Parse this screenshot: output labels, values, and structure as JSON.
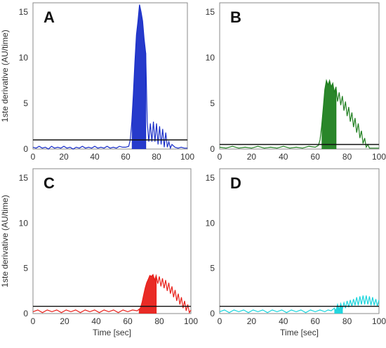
{
  "chart_data": [
    {
      "type": "line",
      "panel_label": "A",
      "ylabel": "1ste derivative (AU/time)",
      "xlabel": "",
      "xlim": [
        0,
        100
      ],
      "ylim": [
        0,
        16
      ],
      "xticks": [
        "0",
        "20",
        "40",
        "60",
        "80",
        "100"
      ],
      "yticks": [
        "0",
        "5",
        "10",
        "15"
      ],
      "color": "#1a2fc8",
      "threshold": 1.0,
      "shaded_range": [
        64,
        73
      ],
      "marker_x": 73,
      "series": [
        {
          "x": [
            0,
            2,
            4,
            6,
            8,
            10,
            12,
            14,
            16,
            18,
            20,
            22,
            24,
            26,
            28,
            30,
            32,
            34,
            36,
            38,
            40,
            42,
            44,
            46,
            48,
            50,
            52,
            54,
            56,
            58,
            60,
            62,
            63,
            64,
            65,
            66,
            67,
            68,
            69,
            70,
            71,
            72,
            73,
            74,
            75,
            76,
            77,
            78,
            79,
            80,
            81,
            82,
            83,
            84,
            85,
            86,
            87,
            88,
            89,
            90,
            92,
            94,
            96,
            98,
            100
          ],
          "y": [
            0.2,
            0.1,
            0.3,
            0.1,
            0.2,
            0.0,
            0.3,
            0.1,
            0.2,
            0.1,
            0.3,
            0.1,
            0.2,
            0.0,
            0.2,
            0.1,
            0.3,
            0.1,
            0.2,
            0.1,
            0.3,
            0.1,
            0.2,
            0.1,
            0.3,
            0.1,
            0.2,
            0.1,
            0.3,
            0.2,
            0.2,
            0.3,
            1.0,
            3.0,
            6.0,
            9.5,
            12.5,
            14.0,
            15.8,
            15.0,
            14.0,
            12.0,
            10.5,
            3.0,
            0.8,
            2.8,
            0.8,
            3.0,
            0.8,
            2.8,
            0.5,
            2.5,
            0.5,
            2.2,
            0.2,
            1.8,
            0.2,
            0.8,
            0.1,
            0.5,
            0.2,
            0.1,
            0.2,
            0.1,
            0.1
          ]
        }
      ]
    },
    {
      "type": "line",
      "panel_label": "B",
      "ylabel": "",
      "xlabel": "",
      "xlim": [
        0,
        100
      ],
      "ylim": [
        0,
        16
      ],
      "xticks": [
        "0",
        "20",
        "40",
        "60",
        "80",
        "100"
      ],
      "yticks": [
        "0",
        "5",
        "10",
        "15"
      ],
      "color": "#1f7f1f",
      "threshold": 0.5,
      "shaded_range": [
        64,
        73
      ],
      "marker_x": 73,
      "series": [
        {
          "x": [
            0,
            4,
            8,
            12,
            16,
            20,
            24,
            28,
            32,
            36,
            40,
            44,
            48,
            52,
            56,
            60,
            62,
            63,
            64,
            65,
            66,
            67,
            68,
            69,
            70,
            71,
            72,
            73,
            74,
            75,
            76,
            77,
            78,
            79,
            80,
            81,
            82,
            83,
            84,
            85,
            86,
            87,
            88,
            89,
            90,
            91,
            92,
            93,
            94,
            96,
            98,
            100
          ],
          "y": [
            0.2,
            0.1,
            0.3,
            0.1,
            0.2,
            0.1,
            0.3,
            0.1,
            0.2,
            0.1,
            0.3,
            0.1,
            0.2,
            0.1,
            0.3,
            0.2,
            0.4,
            1.0,
            2.5,
            4.5,
            6.5,
            7.5,
            7.0,
            7.5,
            6.8,
            7.2,
            6.2,
            6.8,
            5.2,
            6.2,
            4.8,
            5.8,
            4.2,
            5.2,
            3.6,
            4.6,
            3.0,
            4.0,
            2.4,
            3.4,
            1.8,
            2.8,
            1.2,
            2.0,
            0.6,
            1.2,
            0.2,
            0.5,
            0.1,
            0.1,
            0.1,
            0.1
          ]
        }
      ]
    },
    {
      "type": "line",
      "panel_label": "C",
      "ylabel": "1ste derivative (AU/time)",
      "xlabel": "Time [sec]",
      "xlim": [
        0,
        100
      ],
      "ylim": [
        0,
        16
      ],
      "xticks": [
        "0",
        "20",
        "40",
        "60",
        "80",
        "100"
      ],
      "yticks": [
        "0",
        "5",
        "10",
        "15"
      ],
      "color": "#e8201a",
      "threshold": 0.8,
      "shaded_range": [
        67,
        78
      ],
      "marker_x": 78,
      "series": [
        {
          "x": [
            0,
            3,
            6,
            9,
            12,
            15,
            18,
            21,
            24,
            27,
            30,
            33,
            36,
            39,
            42,
            45,
            48,
            51,
            54,
            57,
            60,
            63,
            66,
            68,
            69,
            70,
            71,
            72,
            73,
            74,
            75,
            76,
            77,
            78,
            79,
            80,
            81,
            82,
            83,
            84,
            85,
            86,
            87,
            88,
            89,
            90,
            91,
            92,
            93,
            94,
            95,
            96,
            97,
            98,
            99,
            100
          ],
          "y": [
            0.2,
            0.4,
            0.1,
            0.4,
            0.2,
            0.4,
            0.1,
            0.4,
            0.2,
            0.4,
            0.1,
            0.4,
            0.2,
            0.4,
            0.1,
            0.4,
            0.2,
            0.4,
            0.1,
            0.4,
            0.2,
            0.4,
            0.3,
            0.6,
            1.2,
            2.0,
            2.8,
            3.4,
            3.8,
            4.2,
            4.1,
            4.3,
            3.7,
            4.2,
            3.3,
            4.1,
            3.0,
            3.9,
            2.8,
            3.7,
            2.5,
            3.4,
            2.2,
            3.0,
            1.8,
            2.6,
            1.4,
            2.2,
            1.0,
            1.8,
            0.6,
            1.4,
            0.3,
            1.0,
            0.1,
            0.4
          ]
        }
      ]
    },
    {
      "type": "line",
      "panel_label": "D",
      "ylabel": "",
      "xlabel": "Time [sec]",
      "xlim": [
        0,
        100
      ],
      "ylim": [
        0,
        16
      ],
      "xticks": [
        "0",
        "20",
        "40",
        "60",
        "80",
        "100"
      ],
      "yticks": [
        "0",
        "5",
        "10",
        "15"
      ],
      "color": "#19d4dc",
      "threshold": 0.8,
      "shaded_range": [
        72,
        77
      ],
      "marker_x": 77,
      "series": [
        {
          "x": [
            0,
            3,
            6,
            9,
            12,
            15,
            18,
            21,
            24,
            27,
            30,
            33,
            36,
            39,
            42,
            45,
            48,
            51,
            54,
            57,
            60,
            63,
            66,
            68,
            70,
            72,
            73,
            74,
            75,
            76,
            77,
            78,
            79,
            80,
            81,
            82,
            83,
            84,
            85,
            86,
            87,
            88,
            89,
            90,
            91,
            92,
            93,
            94,
            95,
            96,
            97,
            98,
            99,
            100
          ],
          "y": [
            0.2,
            0.4,
            0.1,
            0.4,
            0.2,
            0.4,
            0.1,
            0.4,
            0.2,
            0.4,
            0.1,
            0.4,
            0.2,
            0.4,
            0.1,
            0.4,
            0.2,
            0.4,
            0.1,
            0.4,
            0.2,
            0.4,
            0.2,
            0.4,
            0.3,
            0.6,
            0.3,
            1.0,
            0.4,
            1.1,
            0.5,
            1.2,
            0.6,
            1.4,
            0.7,
            1.5,
            0.8,
            1.6,
            0.9,
            1.8,
            0.9,
            1.9,
            1.0,
            2.0,
            1.0,
            2.0,
            1.0,
            1.9,
            0.9,
            1.8,
            0.9,
            1.6,
            0.8,
            1.5
          ]
        }
      ]
    }
  ]
}
